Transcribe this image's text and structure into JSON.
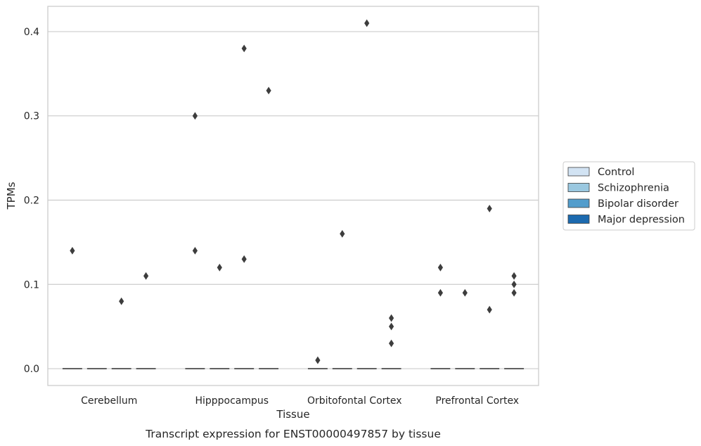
{
  "chart_data": {
    "type": "boxplot",
    "caption": "Transcript expression for ENST00000497857 by tissue",
    "xlabel": "Tissue",
    "ylabel": "TPMs",
    "ylim": [
      -0.02,
      0.43
    ],
    "yticks": [
      "0.0",
      "0.1",
      "0.2",
      "0.3",
      "0.4"
    ],
    "grid": true,
    "legend_position": "right",
    "categories": [
      "Cerebellum",
      "Hipppocampus",
      "Orbitofontal Cortex",
      "Prefrontal Cortex"
    ],
    "series": [
      {
        "name": "Control",
        "color": "#d2e3f3",
        "medians": [
          0,
          0,
          0,
          0
        ],
        "outliers": [
          [
            0.14
          ],
          [
            0.3,
            0.14
          ],
          [
            0.01
          ],
          [
            0.12,
            0.09
          ]
        ]
      },
      {
        "name": "Schizophrenia",
        "color": "#9ac8e0",
        "medians": [
          0,
          0,
          0,
          0
        ],
        "outliers": [
          [],
          [
            0.12
          ],
          [
            0.16
          ],
          [
            0.09
          ]
        ]
      },
      {
        "name": "Bipolar disorder",
        "color": "#529dcc",
        "medians": [
          0,
          0,
          0,
          0
        ],
        "outliers": [
          [
            0.08
          ],
          [
            0.38,
            0.13
          ],
          [
            0.41
          ],
          [
            0.19,
            0.07
          ]
        ]
      },
      {
        "name": "Major depression",
        "color": "#1c6aaf",
        "medians": [
          0,
          0,
          0,
          0
        ],
        "outliers": [
          [
            0.11
          ],
          [
            0.33
          ],
          [
            0.06,
            0.05,
            0.03
          ],
          [
            0.11,
            0.1,
            0.09
          ]
        ]
      }
    ]
  }
}
